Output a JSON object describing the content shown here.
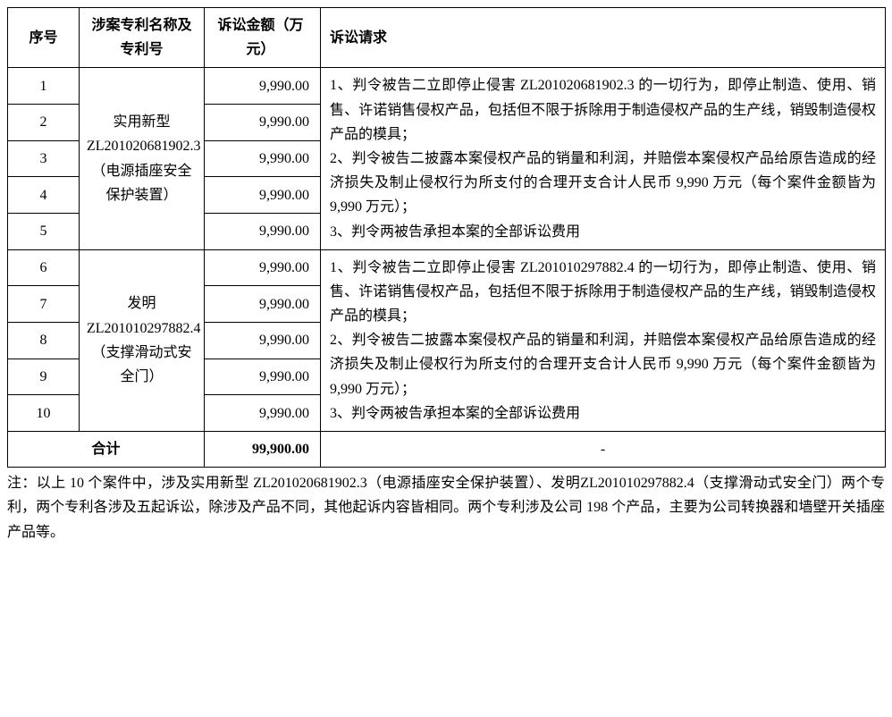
{
  "headers": {
    "seq": "序号",
    "patent": "涉案专利名称及专利号",
    "amount": "诉讼金额（万元）",
    "request": "诉讼请求"
  },
  "group1": {
    "patent": "实用新型ZL201020681902.3（电源插座安全保护装置）",
    "rows": [
      {
        "seq": "1",
        "amount": "9,990.00"
      },
      {
        "seq": "2",
        "amount": "9,990.00"
      },
      {
        "seq": "3",
        "amount": "9,990.00"
      },
      {
        "seq": "4",
        "amount": "9,990.00"
      },
      {
        "seq": "5",
        "amount": "9,990.00"
      }
    ],
    "request": "1、判令被告二立即停止侵害 ZL201020681902.3 的一切行为，即停止制造、使用、销售、许诺销售侵权产品，包括但不限于拆除用于制造侵权产品的生产线，销毁制造侵权产品的模具；\n2、判令被告二披露本案侵权产品的销量和利润，并赔偿本案侵权产品给原告造成的经济损失及制止侵权行为所支付的合理开支合计人民币 9,990 万元（每个案件金额皆为9,990 万元）；\n3、判令两被告承担本案的全部诉讼费用"
  },
  "group2": {
    "patent": "发明ZL201010297882.4（支撑滑动式安全门）",
    "rows": [
      {
        "seq": "6",
        "amount": "9,990.00"
      },
      {
        "seq": "7",
        "amount": "9,990.00"
      },
      {
        "seq": "8",
        "amount": "9,990.00"
      },
      {
        "seq": "9",
        "amount": "9,990.00"
      },
      {
        "seq": "10",
        "amount": "9,990.00"
      }
    ],
    "request": "1、判令被告二立即停止侵害 ZL201010297882.4 的一切行为，即停止制造、使用、销售、许诺销售侵权产品，包括但不限于拆除用于制造侵权产品的生产线，销毁制造侵权产品的模具；\n2、判令被告二披露本案侵权产品的销量和利润，并赔偿本案侵权产品给原告造成的经济损失及制止侵权行为所支付的合理开支合计人民币 9,990 万元（每个案件金额皆为9,990 万元）；\n3、判令两被告承担本案的全部诉讼费用"
  },
  "total": {
    "label": "合计",
    "amount": "99,900.00",
    "dash": "-"
  },
  "footnote": "注：以上 10 个案件中，涉及实用新型 ZL201020681902.3（电源插座安全保护装置）、发明ZL201010297882.4（支撑滑动式安全门）两个专利，两个专利各涉及五起诉讼，除涉及产品不同，其他起诉内容皆相同。两个专利涉及公司 198 个产品，主要为公司转换器和墙壁开关插座产品等。"
}
